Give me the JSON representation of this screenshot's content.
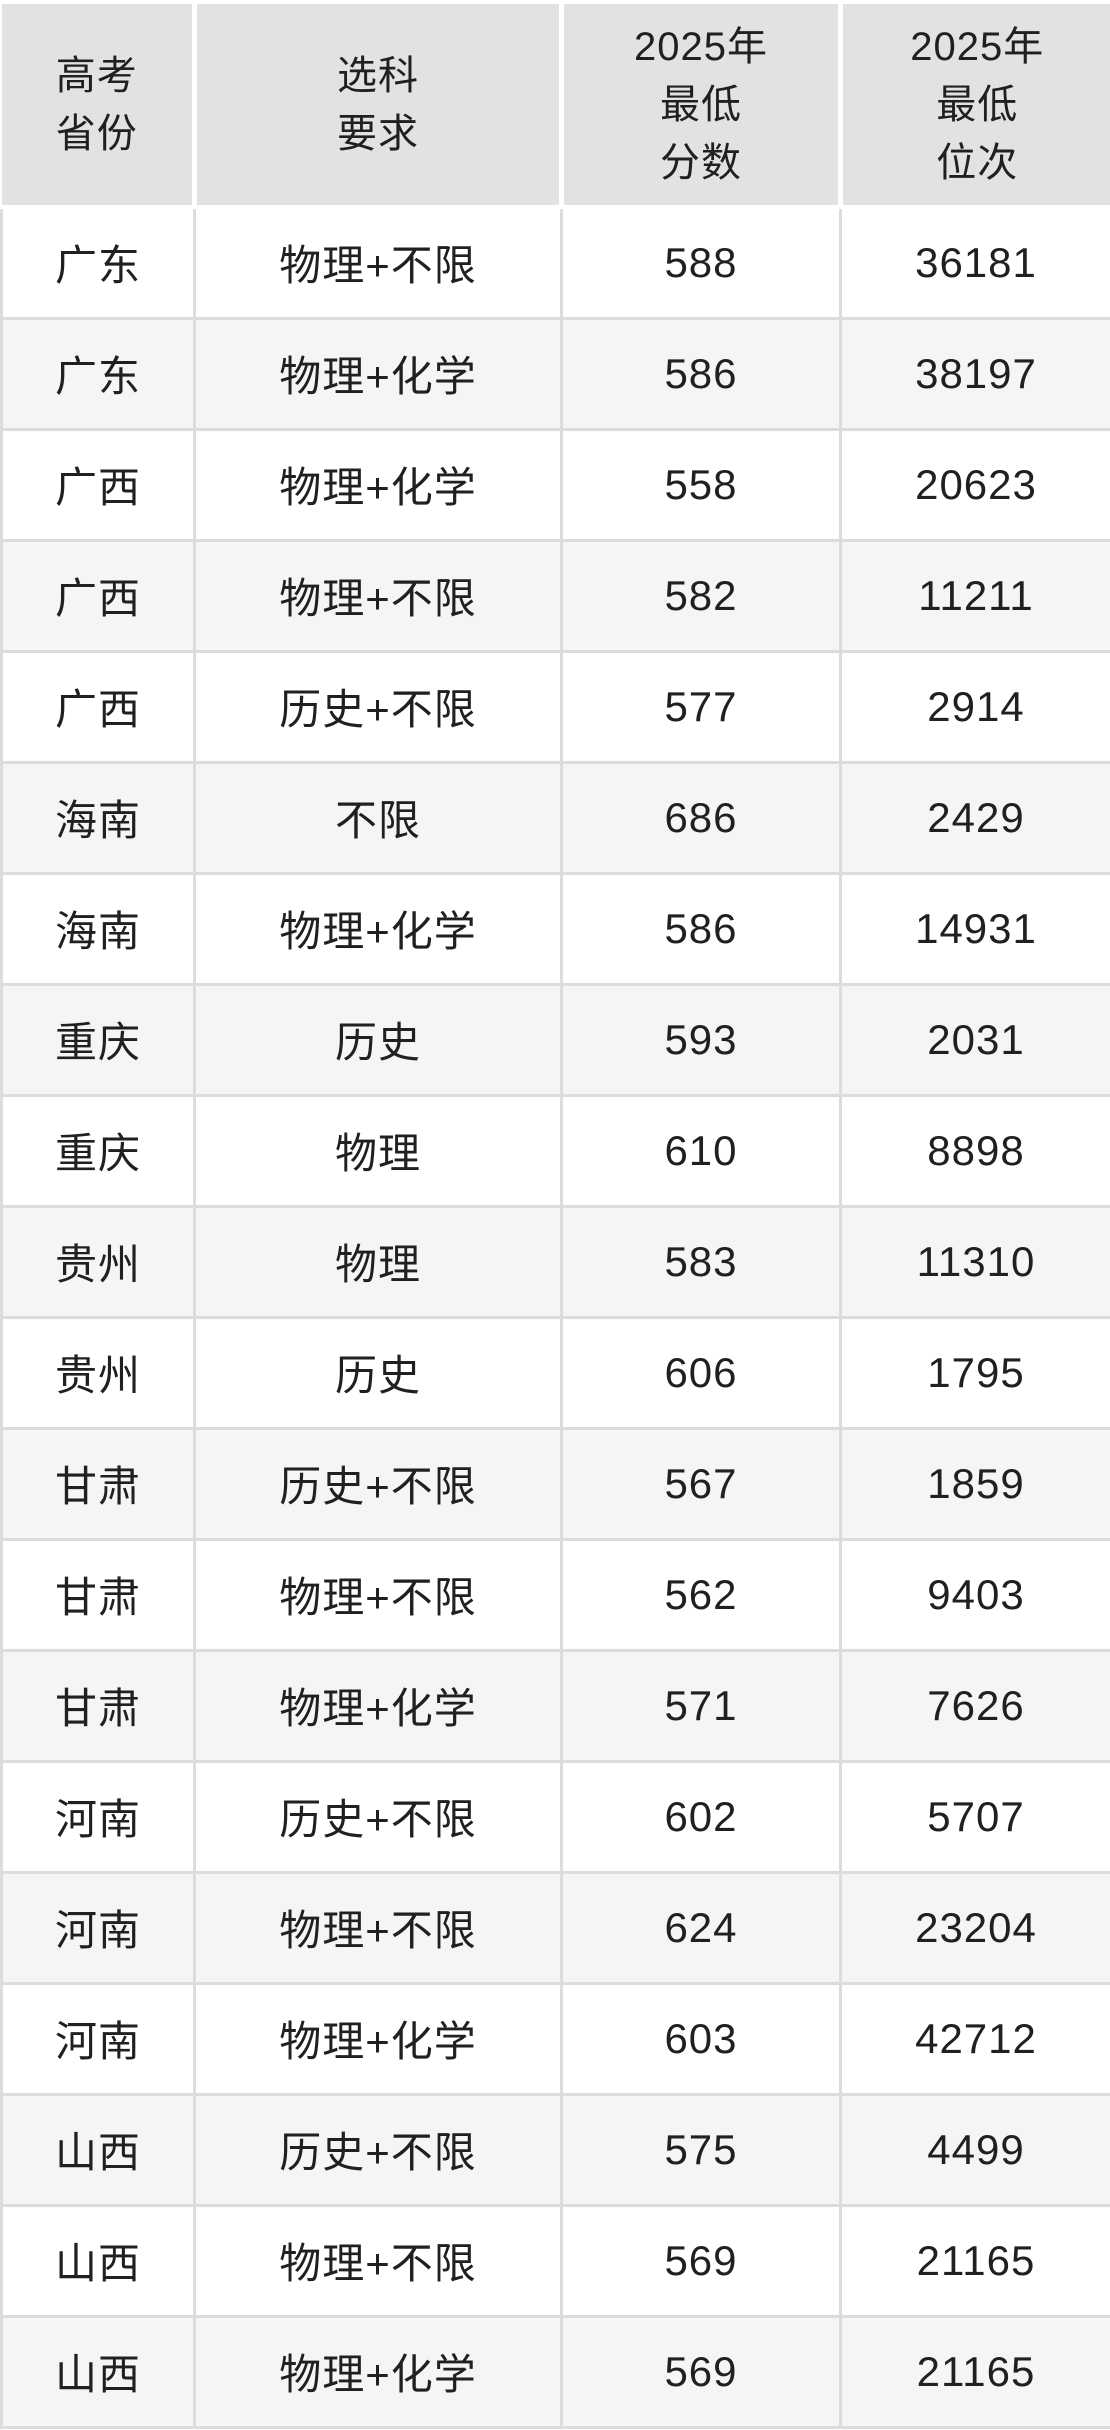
{
  "table": {
    "columns": [
      "高考\n省份",
      "选科\n要求",
      "2025年\n最低\n分数",
      "2025年\n最低\n位次"
    ],
    "rows": [
      [
        "广东",
        "物理+不限",
        "588",
        "36181"
      ],
      [
        "广东",
        "物理+化学",
        "586",
        "38197"
      ],
      [
        "广西",
        "物理+化学",
        "558",
        "20623"
      ],
      [
        "广西",
        "物理+不限",
        "582",
        "11211"
      ],
      [
        "广西",
        "历史+不限",
        "577",
        "2914"
      ],
      [
        "海南",
        "不限",
        "686",
        "2429"
      ],
      [
        "海南",
        "物理+化学",
        "586",
        "14931"
      ],
      [
        "重庆",
        "历史",
        "593",
        "2031"
      ],
      [
        "重庆",
        "物理",
        "610",
        "8898"
      ],
      [
        "贵州",
        "物理",
        "583",
        "11310"
      ],
      [
        "贵州",
        "历史",
        "606",
        "1795"
      ],
      [
        "甘肃",
        "历史+不限",
        "567",
        "1859"
      ],
      [
        "甘肃",
        "物理+不限",
        "562",
        "9403"
      ],
      [
        "甘肃",
        "物理+化学",
        "571",
        "7626"
      ],
      [
        "河南",
        "历史+不限",
        "602",
        "5707"
      ],
      [
        "河南",
        "物理+不限",
        "624",
        "23204"
      ],
      [
        "河南",
        "物理+化学",
        "603",
        "42712"
      ],
      [
        "山西",
        "历史+不限",
        "575",
        "4499"
      ],
      [
        "山西",
        "物理+不限",
        "569",
        "21165"
      ],
      [
        "山西",
        "物理+化学",
        "569",
        "21165"
      ]
    ],
    "colors": {
      "header_bg": "#e2e2e2",
      "row_bg": "#ffffff",
      "row_alt_bg": "#f5f5f5",
      "border": "#dcdcdc",
      "text": "#202020"
    }
  }
}
